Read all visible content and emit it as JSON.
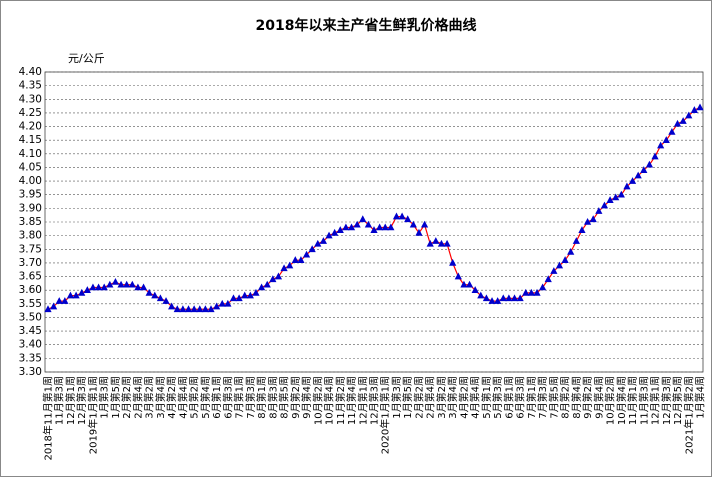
{
  "chart_data": {
    "type": "line",
    "title": "2018年以来主产省生鲜乳价格曲线",
    "y_unit": "元/公斤",
    "categories": [
      "2018年11月第1周",
      null,
      "11月第3周",
      null,
      "12月第1周",
      null,
      "12月第3周",
      null,
      "2019年1月第1周",
      null,
      "1月第3周",
      null,
      "1月第5周",
      null,
      "2月第2周",
      null,
      "2月第4周",
      null,
      "3月第2周",
      null,
      "3月第4周",
      null,
      "4月第2周",
      null,
      "4月第4周",
      null,
      "5月第2周",
      null,
      "5月第4周",
      null,
      "6月第1周",
      null,
      "6月第3周",
      null,
      "7月第1周",
      null,
      "7月第3周",
      null,
      "8月第1周",
      null,
      "8月第3周",
      null,
      "8月第5周",
      null,
      "9月第2周",
      null,
      "9月第4周",
      null,
      "10月第2周",
      null,
      "10月第4周",
      null,
      "11月第2周",
      null,
      "11月第4周",
      null,
      "12月第1周",
      null,
      "12月第3周",
      null,
      "2020年1月第1周",
      null,
      "1月第3周",
      null,
      "1月第5周",
      null,
      "2月第2周",
      null,
      "2月第4周",
      null,
      "3月第2周",
      null,
      "3月第4周",
      null,
      "4月第2周",
      null,
      "4月第4周",
      null,
      "5月第1周",
      null,
      "5月第3周",
      null,
      "6月第1周",
      null,
      "6月第3周",
      null,
      "7月第1周",
      null,
      "7月第3周",
      null,
      "7月第5周",
      null,
      "8月第2周",
      null,
      "8月第4周",
      null,
      "9月第2周",
      null,
      "9月第4周",
      null,
      "10月第2周",
      null,
      "10月第4周",
      null,
      "11月第1周",
      null,
      "11月第3周",
      null,
      "12月第1周",
      null,
      "12月第3周",
      null,
      "12月第5周",
      null,
      "2021年1月第2周",
      null,
      "1月第4周"
    ],
    "series": [
      {
        "color": "#ff0000",
        "marker_color": "#0000cc",
        "values": [
          3.53,
          3.54,
          3.56,
          3.56,
          3.58,
          3.58,
          3.59,
          3.6,
          3.61,
          3.61,
          3.61,
          3.62,
          3.63,
          3.62,
          3.62,
          3.62,
          3.61,
          3.61,
          3.59,
          3.58,
          3.57,
          3.56,
          3.54,
          3.53,
          3.53,
          3.53,
          3.53,
          3.53,
          3.53,
          3.53,
          3.54,
          3.55,
          3.55,
          3.57,
          3.57,
          3.58,
          3.58,
          3.59,
          3.61,
          3.62,
          3.64,
          3.65,
          3.68,
          3.69,
          3.71,
          3.71,
          3.73,
          3.75,
          3.77,
          3.78,
          3.8,
          3.81,
          3.82,
          3.83,
          3.83,
          3.84,
          3.86,
          3.84,
          3.82,
          3.83,
          3.83,
          3.83,
          3.87,
          3.87,
          3.86,
          3.84,
          3.81,
          3.84,
          3.77,
          3.78,
          3.77,
          3.77,
          3.7,
          3.65,
          3.62,
          3.62,
          3.6,
          3.58,
          3.57,
          3.56,
          3.56,
          3.57,
          3.57,
          3.57,
          3.57,
          3.59,
          3.59,
          3.59,
          3.61,
          3.64,
          3.67,
          3.69,
          3.71,
          3.74,
          3.78,
          3.82,
          3.85,
          3.86,
          3.89,
          3.91,
          3.93,
          3.94,
          3.95,
          3.98,
          4.0,
          4.02,
          4.04,
          4.06,
          4.09,
          4.13,
          4.15,
          4.18,
          4.21,
          4.22,
          4.24,
          4.26,
          4.27
        ]
      }
    ],
    "ylim": [
      3.3,
      4.4
    ],
    "yticks": [
      {
        "value": 3.3,
        "label": "3.30"
      },
      3.35,
      {
        "value": 3.4,
        "label": "3.40"
      },
      3.45,
      {
        "value": 3.5,
        "label": "3.50"
      },
      3.55,
      {
        "value": 3.6,
        "label": "3.60"
      },
      3.65,
      {
        "value": 3.7,
        "label": "3.70"
      },
      3.75,
      {
        "value": 3.8,
        "label": "3.80"
      },
      3.85,
      {
        "value": 3.9,
        "label": "3.90"
      },
      3.95,
      {
        "value": 4.0,
        "label": "4.00"
      },
      4.05,
      {
        "value": 4.1,
        "label": "4.10"
      },
      4.15,
      {
        "value": 4.2,
        "label": "4.20"
      },
      4.25,
      {
        "value": 4.3,
        "label": "4.30"
      },
      4.35,
      {
        "value": 4.4,
        "label": "4.40"
      }
    ],
    "grid": true
  }
}
